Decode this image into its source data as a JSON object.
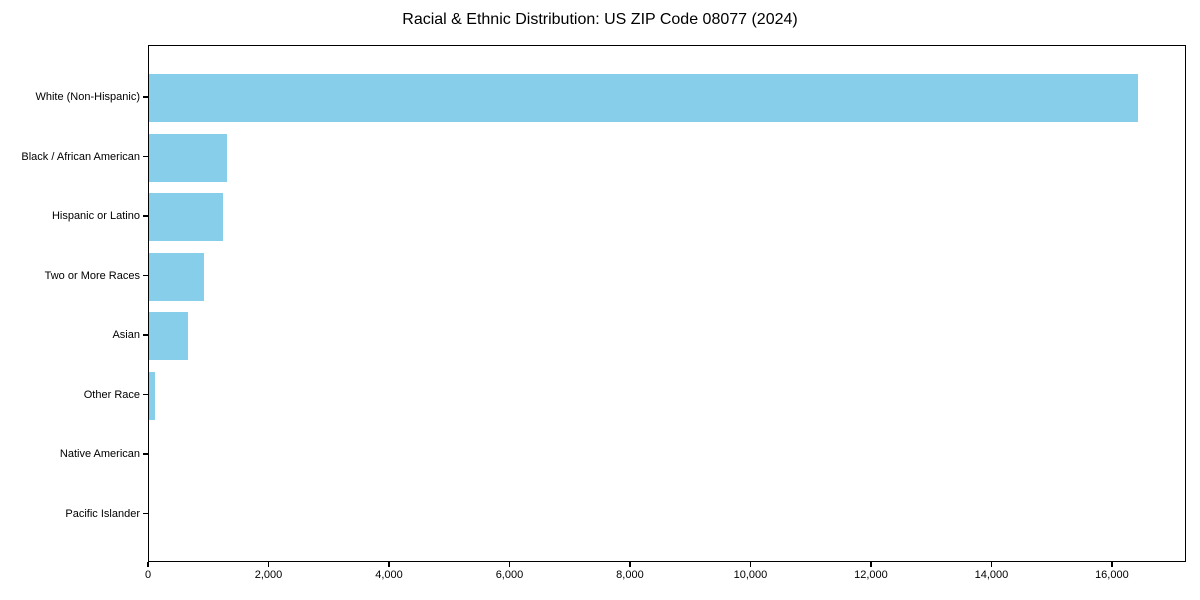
{
  "chart_data": {
    "type": "bar",
    "orientation": "horizontal",
    "title": "Racial & Ethnic Distribution: US ZIP Code 08077 (2024)",
    "categories": [
      "White (Non-Hispanic)",
      "Black / African American",
      "Hispanic or Latino",
      "Two or More Races",
      "Asian",
      "Other Race",
      "Native American",
      "Pacific Islander"
    ],
    "values": [
      16420,
      1290,
      1230,
      910,
      650,
      100,
      0,
      0
    ],
    "xlabel": "",
    "ylabel": "",
    "xlim": [
      0,
      17230
    ],
    "x_ticks": [
      0,
      2000,
      4000,
      6000,
      8000,
      10000,
      12000,
      14000,
      16000
    ],
    "x_tick_labels": [
      "0",
      "2,000",
      "4,000",
      "6,000",
      "8,000",
      "10,000",
      "12,000",
      "14,000",
      "16,000"
    ],
    "grid": false,
    "legend": "none",
    "bar_color": "#87CEEB",
    "spine_color": "#000000",
    "text_color": "#000000",
    "background_color": "#ffffff"
  }
}
